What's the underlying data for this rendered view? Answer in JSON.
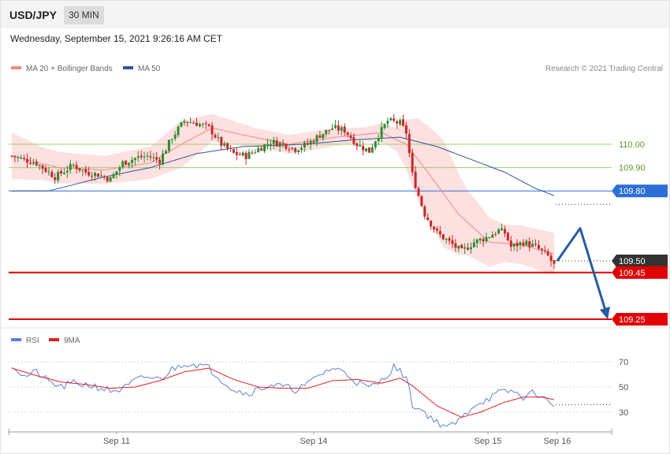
{
  "header": {
    "symbol": "USD/JPY",
    "timeframe": "30 MIN"
  },
  "datetime": "Wednesday, September 15, 2021 9:26:16 AM CET",
  "legend_main": [
    {
      "label": "MA 20 + Bollinger Bands",
      "color": "#f08a84"
    },
    {
      "label": "MA 50",
      "color": "#2f5597"
    }
  ],
  "copyright": "Research © 2021 Trading Central",
  "legend_rsi": [
    {
      "label": "RSI",
      "color": "#5b7fd6"
    },
    {
      "label": "9MA",
      "color": "#e02020"
    }
  ],
  "colors": {
    "up": "#2e8b2e",
    "down": "#c62828",
    "band": "#fde0e0",
    "ma20": "#f08a84",
    "ma50": "#2f5597",
    "resistance": "#9bcf6b",
    "support": "#e00000",
    "pivot": "#2b6fd6",
    "current": "#333333",
    "arrow": "#2a5a9e"
  },
  "chart_data": [
    {
      "type": "candlestick",
      "title": "",
      "ylim": [
        109.16,
        110.42
      ],
      "x_tick_labels": [
        "Sep 11",
        "Sep 14",
        "Sep 15",
        "Sep 16"
      ],
      "levels": [
        {
          "label": "110.00",
          "value": 110.0,
          "kind": "resistance"
        },
        {
          "label": "109.90",
          "value": 109.9,
          "kind": "resistance"
        },
        {
          "label": "109.80",
          "value": 109.8,
          "kind": "pivot"
        },
        {
          "label": "109.50",
          "value": 109.5,
          "kind": "current"
        },
        {
          "label": "109.45",
          "value": 109.45,
          "kind": "support"
        },
        {
          "label": "109.25",
          "value": 109.25,
          "kind": "support"
        }
      ],
      "close_anchors": [
        [
          0,
          109.95
        ],
        [
          8,
          109.92
        ],
        [
          14,
          109.86
        ],
        [
          20,
          109.91
        ],
        [
          24,
          109.88
        ],
        [
          28,
          109.87
        ],
        [
          32,
          109.85
        ],
        [
          36,
          109.92
        ],
        [
          40,
          109.94
        ],
        [
          44,
          109.95
        ],
        [
          48,
          109.93
        ],
        [
          52,
          110.03
        ],
        [
          56,
          110.1
        ],
        [
          60,
          110.09
        ],
        [
          64,
          110.07
        ],
        [
          68,
          110.0
        ],
        [
          72,
          109.96
        ],
        [
          76,
          109.95
        ],
        [
          80,
          109.98
        ],
        [
          84,
          110.01
        ],
        [
          88,
          110.0
        ],
        [
          92,
          109.98
        ],
        [
          96,
          110.0
        ],
        [
          100,
          110.04
        ],
        [
          104,
          110.07
        ],
        [
          108,
          110.06
        ],
        [
          112,
          110.0
        ],
        [
          116,
          109.97
        ],
        [
          118,
          110.02
        ],
        [
          122,
          110.1
        ],
        [
          126,
          110.09
        ],
        [
          128,
          110.05
        ],
        [
          130,
          109.87
        ],
        [
          132,
          109.78
        ],
        [
          134,
          109.7
        ],
        [
          138,
          109.62
        ],
        [
          142,
          109.58
        ],
        [
          146,
          109.54
        ],
        [
          150,
          109.58
        ],
        [
          154,
          109.6
        ],
        [
          158,
          109.63
        ],
        [
          160,
          109.62
        ],
        [
          162,
          109.56
        ],
        [
          166,
          109.58
        ],
        [
          170,
          109.56
        ],
        [
          174,
          109.52
        ],
        [
          176,
          109.48
        ]
      ],
      "ma20_anchors": [
        [
          0,
          109.95
        ],
        [
          15,
          109.9
        ],
        [
          30,
          109.89
        ],
        [
          45,
          109.92
        ],
        [
          55,
          110.0
        ],
        [
          65,
          110.07
        ],
        [
          75,
          110.04
        ],
        [
          90,
          110.0
        ],
        [
          105,
          110.03
        ],
        [
          120,
          110.05
        ],
        [
          128,
          110.0
        ],
        [
          135,
          109.88
        ],
        [
          145,
          109.7
        ],
        [
          155,
          109.58
        ],
        [
          165,
          109.57
        ],
        [
          176,
          109.53
        ]
      ],
      "band_width_anchors": [
        [
          0,
          0.1
        ],
        [
          10,
          0.07
        ],
        [
          30,
          0.06
        ],
        [
          45,
          0.07
        ],
        [
          55,
          0.1
        ],
        [
          65,
          0.06
        ],
        [
          80,
          0.04
        ],
        [
          100,
          0.04
        ],
        [
          115,
          0.03
        ],
        [
          125,
          0.05
        ],
        [
          132,
          0.18
        ],
        [
          140,
          0.23
        ],
        [
          148,
          0.14
        ],
        [
          160,
          0.08
        ],
        [
          176,
          0.09
        ]
      ],
      "ma50_anchors": [
        [
          0,
          109.8
        ],
        [
          12,
          109.8
        ],
        [
          30,
          109.86
        ],
        [
          45,
          109.9
        ],
        [
          60,
          109.96
        ],
        [
          75,
          109.99
        ],
        [
          95,
          110.0
        ],
        [
          112,
          110.02
        ],
        [
          126,
          110.03
        ],
        [
          138,
          109.99
        ],
        [
          150,
          109.93
        ],
        [
          160,
          109.88
        ],
        [
          170,
          109.81
        ],
        [
          176,
          109.78
        ]
      ],
      "forecast": [
        [
          109.5,
          109.64,
          109.25
        ]
      ]
    },
    {
      "type": "line",
      "title": "RSI",
      "ylim": [
        15,
        85
      ],
      "y_tick_labels": [
        "70",
        "50",
        "30"
      ],
      "rsi_anchors": [
        [
          0,
          68
        ],
        [
          4,
          58
        ],
        [
          8,
          62
        ],
        [
          12,
          54
        ],
        [
          16,
          50
        ],
        [
          20,
          53
        ],
        [
          24,
          52
        ],
        [
          28,
          50
        ],
        [
          32,
          47
        ],
        [
          36,
          48
        ],
        [
          40,
          55
        ],
        [
          44,
          58
        ],
        [
          48,
          56
        ],
        [
          52,
          64
        ],
        [
          56,
          69
        ],
        [
          60,
          68
        ],
        [
          64,
          65
        ],
        [
          68,
          56
        ],
        [
          72,
          48
        ],
        [
          76,
          45
        ],
        [
          80,
          48
        ],
        [
          84,
          52
        ],
        [
          88,
          50
        ],
        [
          92,
          48
        ],
        [
          96,
          52
        ],
        [
          100,
          60
        ],
        [
          104,
          65
        ],
        [
          108,
          62
        ],
        [
          112,
          54
        ],
        [
          116,
          49
        ],
        [
          120,
          55
        ],
        [
          124,
          66
        ],
        [
          128,
          58
        ],
        [
          130,
          36
        ],
        [
          134,
          30
        ],
        [
          138,
          22
        ],
        [
          142,
          18
        ],
        [
          146,
          25
        ],
        [
          150,
          36
        ],
        [
          154,
          40
        ],
        [
          158,
          45
        ],
        [
          162,
          47
        ],
        [
          166,
          42
        ],
        [
          170,
          46
        ],
        [
          174,
          38
        ],
        [
          176,
          36
        ]
      ],
      "rsi_ma_anchors": [
        [
          0,
          65
        ],
        [
          8,
          59
        ],
        [
          16,
          54
        ],
        [
          24,
          52
        ],
        [
          32,
          49
        ],
        [
          40,
          50
        ],
        [
          48,
          55
        ],
        [
          56,
          62
        ],
        [
          64,
          65
        ],
        [
          72,
          56
        ],
        [
          80,
          50
        ],
        [
          88,
          49
        ],
        [
          96,
          49
        ],
        [
          104,
          55
        ],
        [
          112,
          56
        ],
        [
          120,
          53
        ],
        [
          126,
          57
        ],
        [
          130,
          51
        ],
        [
          138,
          35
        ],
        [
          146,
          26
        ],
        [
          152,
          30
        ],
        [
          160,
          38
        ],
        [
          166,
          42
        ],
        [
          172,
          42
        ],
        [
          176,
          40
        ]
      ]
    }
  ]
}
